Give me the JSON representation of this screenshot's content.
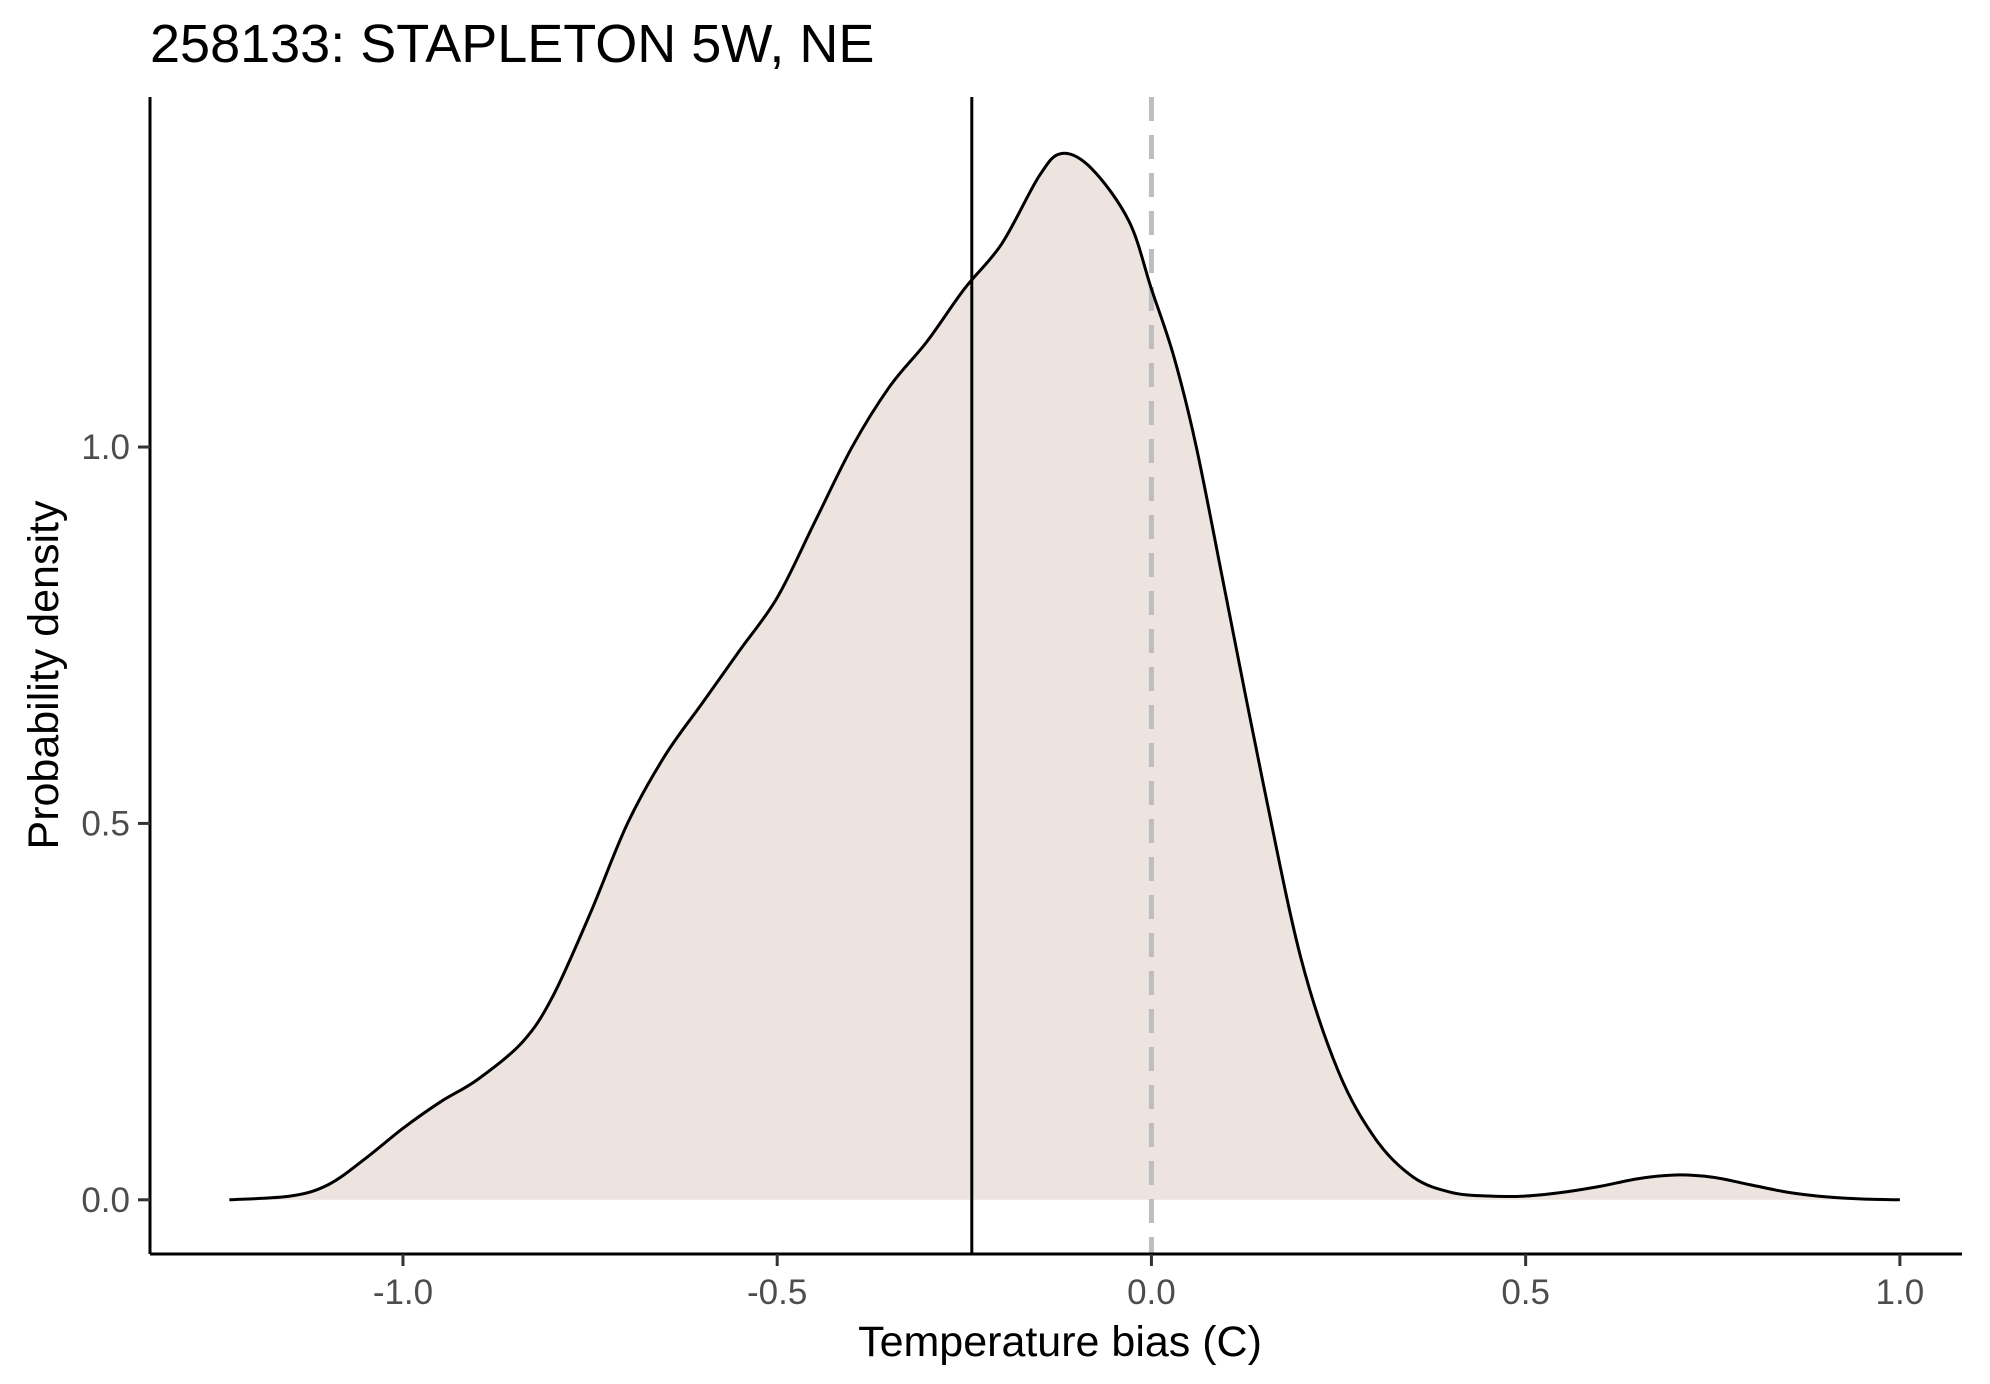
{
  "chart_data": {
    "type": "area",
    "title": "258133: STAPLETON 5W, NE",
    "xlabel": "Temperature bias (C)",
    "ylabel": "Probability density",
    "xlim": [
      -1.338,
      1.083
    ],
    "ylim": [
      -0.072,
      1.465
    ],
    "x_ticks": [
      -1.0,
      -0.5,
      0.0,
      0.5,
      1.0
    ],
    "x_tick_labels": [
      "-1.0",
      "-0.5",
      "0.0",
      "0.5",
      "1.0"
    ],
    "y_ticks": [
      0.0,
      0.5,
      1.0
    ],
    "y_tick_labels": [
      "0.0",
      "0.5",
      "1.0"
    ],
    "grid": false,
    "legend": "none",
    "fill_color": "#ede3df",
    "line_color": "#000000",
    "reference_lines": [
      {
        "x": -0.24,
        "style": "solid",
        "color": "#000000"
      },
      {
        "x": 0.0,
        "style": "dashed",
        "color": "#bebebe"
      }
    ],
    "density": {
      "x": [
        -1.232,
        -1.15,
        -1.1,
        -1.05,
        -1.0,
        -0.95,
        -0.9,
        -0.84,
        -0.8,
        -0.75,
        -0.7,
        -0.65,
        -0.6,
        -0.55,
        -0.5,
        -0.45,
        -0.4,
        -0.35,
        -0.3,
        -0.25,
        -0.2,
        -0.15,
        -0.12,
        -0.08,
        -0.03,
        0.0,
        0.03,
        0.06,
        0.1,
        0.15,
        0.2,
        0.25,
        0.3,
        0.35,
        0.4,
        0.45,
        0.5,
        0.55,
        0.6,
        0.65,
        0.7,
        0.75,
        0.8,
        0.85,
        0.9,
        0.95,
        1.0
      ],
      "y": [
        0.0,
        0.005,
        0.02,
        0.055,
        0.095,
        0.13,
        0.16,
        0.21,
        0.27,
        0.38,
        0.5,
        0.59,
        0.66,
        0.73,
        0.8,
        0.9,
        1.0,
        1.08,
        1.14,
        1.21,
        1.27,
        1.36,
        1.39,
        1.37,
        1.3,
        1.21,
        1.12,
        1.0,
        0.8,
        0.55,
        0.32,
        0.17,
        0.08,
        0.03,
        0.01,
        0.005,
        0.005,
        0.01,
        0.018,
        0.028,
        0.033,
        0.03,
        0.02,
        0.01,
        0.004,
        0.001,
        0.0
      ]
    }
  }
}
